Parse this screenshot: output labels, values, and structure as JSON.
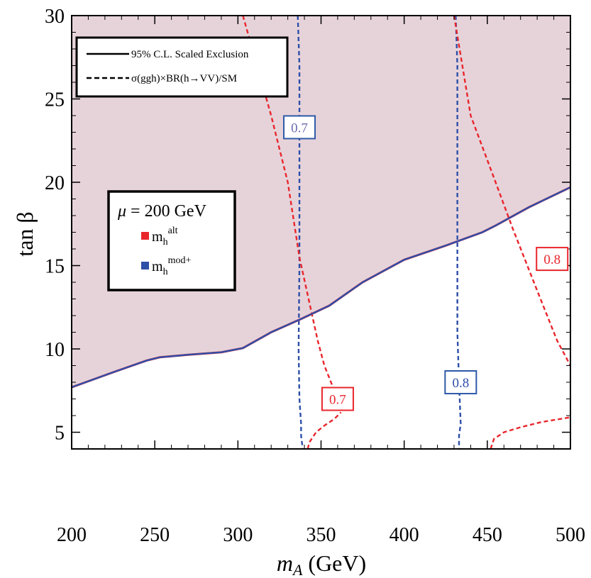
{
  "chart_data": {
    "type": "line",
    "xlabel": "m_A (GeV)",
    "xlabel_main": "m",
    "xlabel_sub": "A",
    "xlabel_unit": "(GeV)",
    "ylabel": "tan β",
    "xlim": [
      200,
      500
    ],
    "ylim": [
      4,
      30
    ],
    "x_ticks": [
      200,
      250,
      300,
      350,
      400,
      450,
      500
    ],
    "y_ticks": [
      5,
      10,
      15,
      20,
      25,
      30
    ],
    "colors": {
      "excluded_fill": "#e6d3da",
      "alt": "#e8262c",
      "modplus": "#2e4fa8",
      "modplus_label": "#6a6ab0",
      "modplus_box": "#2e5aa8"
    },
    "legend_lines": [
      {
        "style": "solid",
        "label": "95% C.L. Scaled Exclusion"
      },
      {
        "style": "dashed",
        "label": "σ(ggh)×BR(h→VV)/SM"
      }
    ],
    "scenario_box": {
      "mu_symbol": "μ",
      "mu_rest": " = 200 GeV",
      "entries": [
        {
          "label": "m",
          "sub": "h",
          "sup": "alt",
          "color": "#e8262c"
        },
        {
          "label": "m",
          "sub": "h",
          "sup": "mod+",
          "color": "#2e4fa8"
        }
      ]
    },
    "exclusion_boundary": {
      "name": "95% C.L. Scaled Exclusion",
      "x": [
        200,
        225,
        245,
        253,
        270,
        290,
        303,
        320,
        338,
        355,
        375,
        400,
        425,
        447,
        455,
        475,
        500
      ],
      "y": [
        7.7,
        8.6,
        9.3,
        9.5,
        9.65,
        9.8,
        10.05,
        11.0,
        11.8,
        12.6,
        14.0,
        15.35,
        16.2,
        17.0,
        17.4,
        18.5,
        19.7
      ]
    },
    "series": [
      {
        "scenario": "mod+",
        "value_label": "0.7",
        "label_pos": [
          337,
          23.3
        ],
        "x": [
          336,
          337,
          337,
          337,
          337,
          336.5,
          337,
          338,
          338,
          339
        ],
        "y": [
          30,
          27,
          24,
          20,
          15,
          10,
          7,
          5.5,
          4.8,
          4
        ]
      },
      {
        "scenario": "mod+",
        "value_label": "0.8",
        "label_pos": [
          434,
          8.0
        ],
        "x": [
          431,
          432,
          432,
          432,
          432,
          432,
          433,
          434,
          433,
          433
        ],
        "y": [
          30,
          27,
          23,
          19,
          15,
          11,
          8,
          5.5,
          4.8,
          4
        ]
      },
      {
        "scenario": "alt",
        "value_label": "0.7",
        "label_pos": [
          360,
          7.0
        ],
        "x": [
          303,
          320,
          330,
          337,
          348,
          352,
          358
        ],
        "y": [
          30,
          24,
          20,
          15.5,
          10.5,
          9,
          7.5
        ]
      },
      {
        "scenario": "alt",
        "value_label": "",
        "label_pos": null,
        "x": [
          342,
          343,
          347,
          352,
          358,
          362
        ],
        "y": [
          4,
          4.4,
          5,
          5.4,
          5.8,
          6.2
        ]
      },
      {
        "scenario": "alt",
        "value_label": "0.8",
        "label_pos": [
          489,
          15.4
        ],
        "x": [
          430,
          440,
          455,
          465,
          480,
          492,
          500
        ],
        "y": [
          30,
          24,
          20,
          17.3,
          13.5,
          10.5,
          9
        ]
      },
      {
        "scenario": "alt",
        "value_label": "",
        "label_pos": null,
        "x": [
          452,
          454,
          460,
          470,
          482,
          494,
          500
        ],
        "y": [
          4,
          4.6,
          5.0,
          5.3,
          5.6,
          5.8,
          5.9
        ]
      }
    ]
  }
}
